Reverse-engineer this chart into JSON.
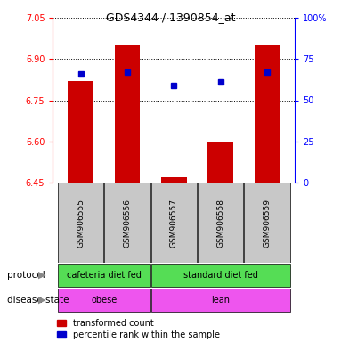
{
  "title": "GDS4344 / 1390854_at",
  "samples": [
    "GSM906555",
    "GSM906556",
    "GSM906557",
    "GSM906558",
    "GSM906559"
  ],
  "bar_values": [
    6.82,
    6.95,
    6.47,
    6.6,
    6.95
  ],
  "percentile_values": [
    6.845,
    6.853,
    6.805,
    6.815,
    6.853
  ],
  "y_min": 6.45,
  "y_max": 7.05,
  "y_ticks": [
    6.45,
    6.6,
    6.75,
    6.9,
    7.05
  ],
  "y2_ticks": [
    0,
    25,
    50,
    75,
    100
  ],
  "bar_color": "#cc0000",
  "percentile_color": "#0000cc",
  "sample_label_bg": "#c8c8c8",
  "protocol_labels": [
    "cafeteria diet fed",
    "standard diet fed"
  ],
  "protocol_color": "#55dd55",
  "disease_labels": [
    "obese",
    "lean"
  ],
  "disease_color": "#ee55ee",
  "legend_red_label": "transformed count",
  "legend_blue_label": "percentile rank within the sample",
  "bar_width": 0.55
}
